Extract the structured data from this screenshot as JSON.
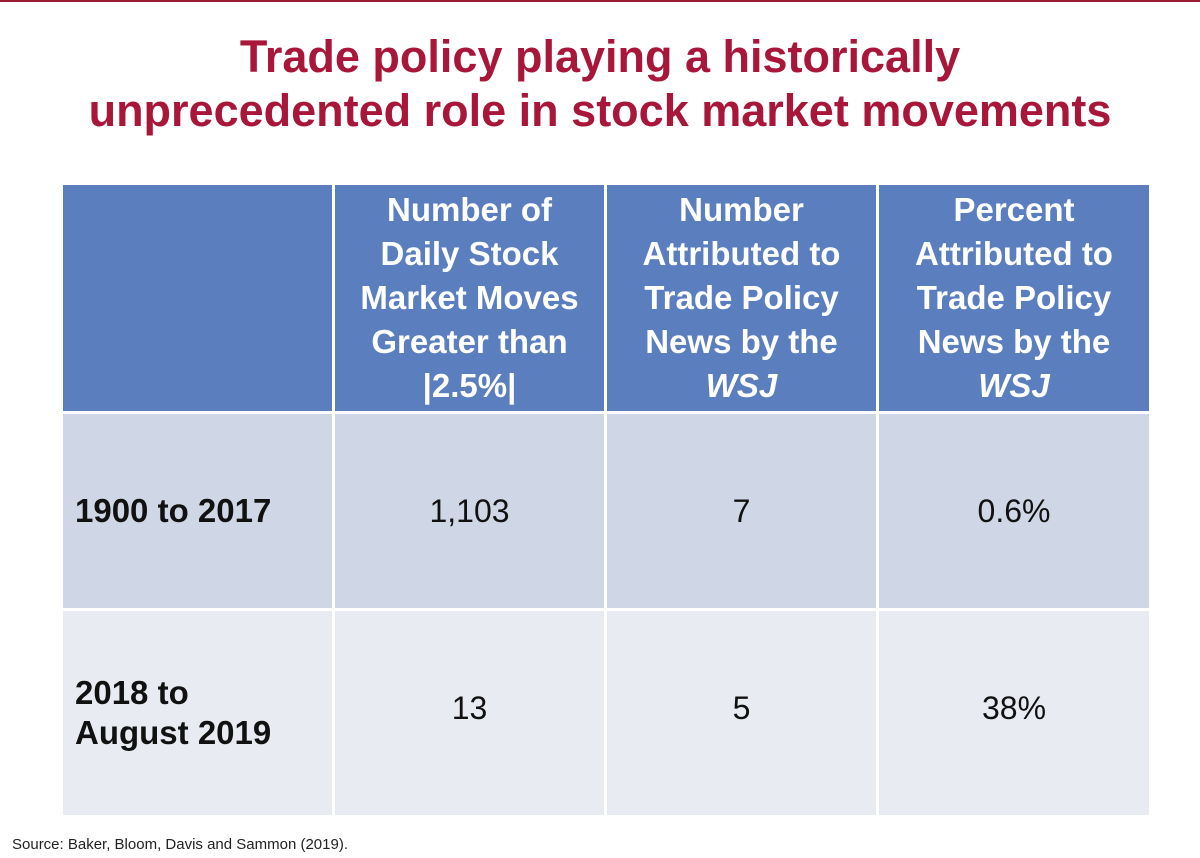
{
  "title": {
    "line1": "Trade policy playing a historically",
    "line2": "unprecedented role in stock market movements"
  },
  "table": {
    "headers": [
      {
        "lines": []
      },
      {
        "lines": [
          "Number of",
          "Daily Stock",
          "Market Moves",
          "Greater than",
          "|2.5%|"
        ]
      },
      {
        "lines": [
          "Number",
          "Attributed to",
          "Trade Policy",
          "News by the"
        ],
        "italic": "WSJ"
      },
      {
        "lines": [
          "Percent",
          "Attributed to",
          "Trade Policy",
          "News by the"
        ],
        "italic": "WSJ"
      }
    ],
    "rows": [
      {
        "label_lines": [
          "1900 to 2017"
        ],
        "moves": "1,103",
        "attributed": "7",
        "percent": "0.6%"
      },
      {
        "label_lines": [
          "2018 to",
          "August 2019"
        ],
        "moves": "13",
        "attributed": "5",
        "percent": "38%"
      }
    ]
  },
  "source": "Source: Baker, Bloom, Davis and Sammon (2019).",
  "colors": {
    "title": "#a8173a",
    "header_bg": "#5b7fbe",
    "row1_bg": "#cfd7e6",
    "row2_bg": "#e8ebf2"
  }
}
